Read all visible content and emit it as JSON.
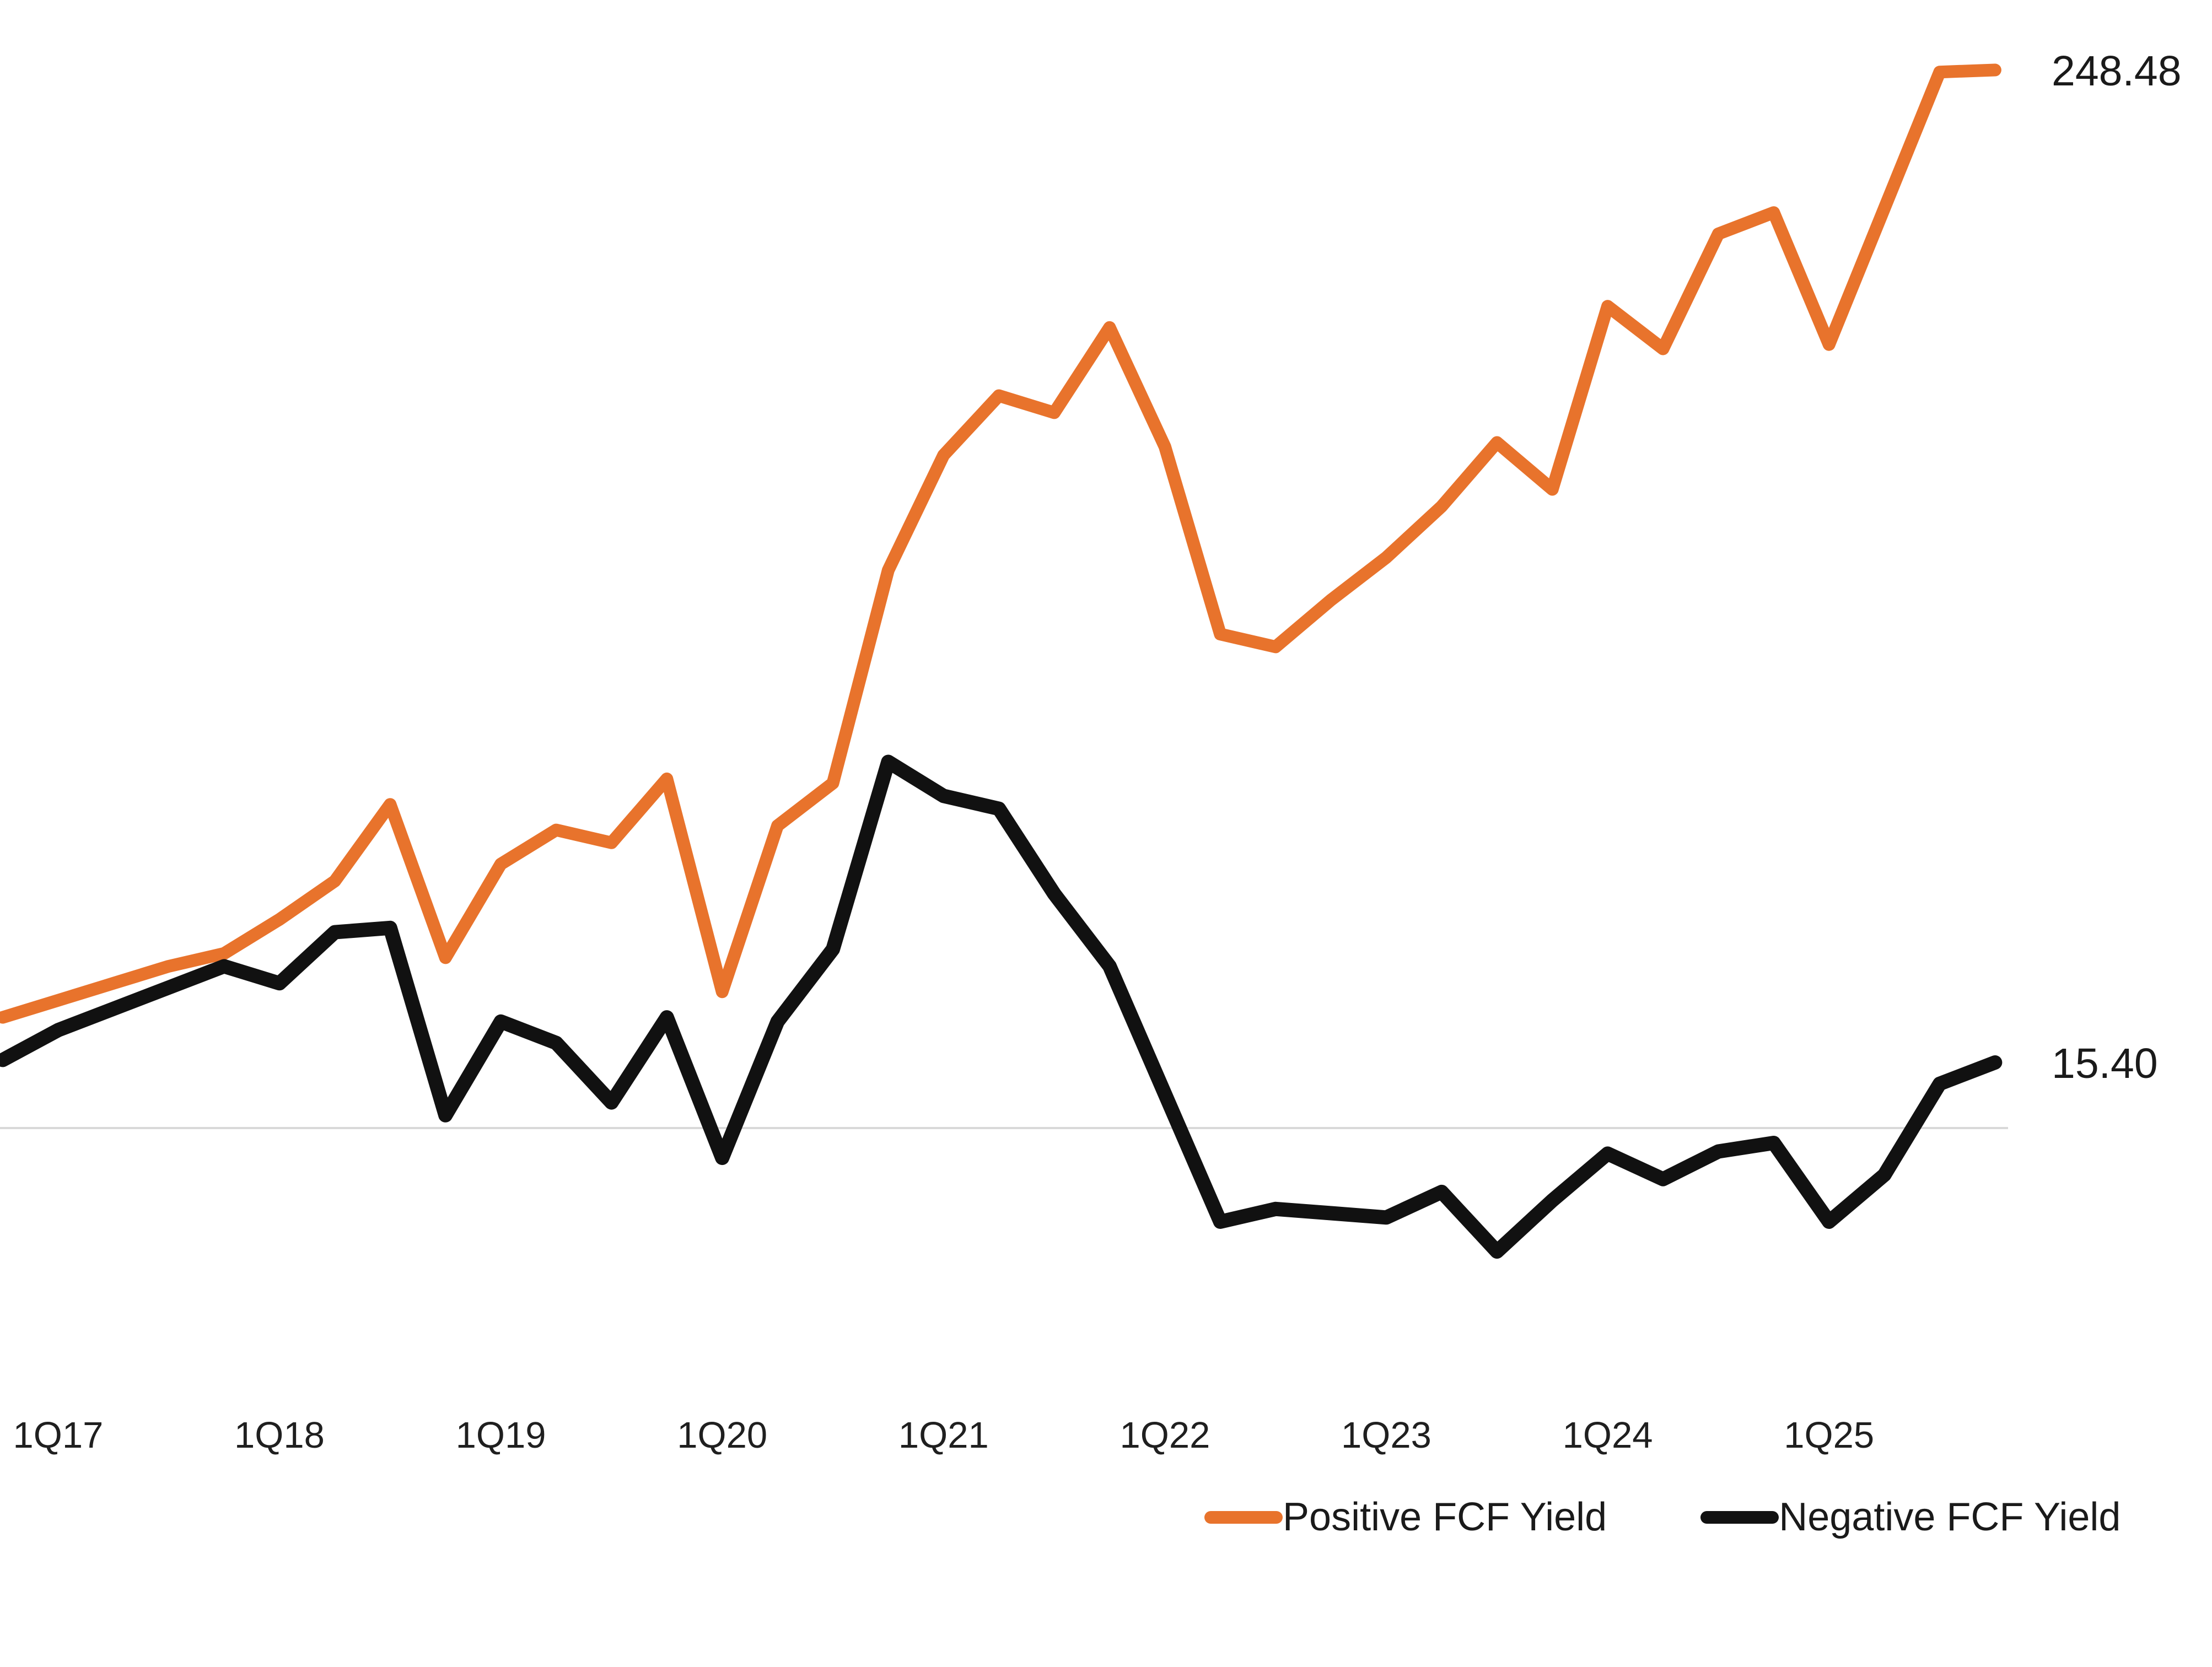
{
  "chart_data": {
    "type": "line",
    "title": "",
    "categories": [
      "4Q16",
      "1Q17",
      "2Q17",
      "3Q17",
      "4Q17",
      "1Q18",
      "2Q18",
      "3Q18",
      "4Q18",
      "1Q19",
      "2Q19",
      "3Q19",
      "4Q19",
      "1Q20",
      "2Q20",
      "3Q20",
      "4Q20",
      "1Q21",
      "2Q21",
      "3Q21",
      "4Q21",
      "1Q22",
      "2Q22",
      "3Q22",
      "4Q22",
      "1Q23",
      "2Q23",
      "3Q23",
      "4Q23",
      "1Q24",
      "2Q24",
      "3Q24",
      "4Q24",
      "1Q25",
      "2Q25",
      "3Q25",
      "4Q25"
    ],
    "x_tick_labels": [
      "1Q17",
      "1Q18",
      "1Q19",
      "1Q20",
      "1Q21",
      "1Q22",
      "1Q23",
      "1Q24",
      "1Q25"
    ],
    "series": [
      {
        "name": "Positive FCF Yield",
        "color": "#E8732C",
        "end_label": "248.48",
        "values": [
          26,
          30,
          34,
          38,
          41,
          49,
          58,
          76,
          40,
          62,
          70,
          67,
          82,
          32,
          71,
          81,
          131,
          158,
          172,
          168,
          188,
          160,
          116,
          113,
          124,
          134,
          146,
          161,
          150,
          193,
          183,
          210,
          215,
          184,
          216,
          248,
          248.48
        ]
      },
      {
        "name": "Negative FCF Yield",
        "color": "#111111",
        "end_label": "15.40",
        "values": [
          16,
          23,
          28,
          33,
          38,
          34,
          46,
          47,
          3,
          25,
          20,
          6,
          26,
          -7,
          25,
          42,
          86,
          78,
          75,
          55,
          38,
          8,
          -22,
          -19,
          -20,
          -21,
          -15,
          -29,
          -17,
          -6,
          -12,
          -5.5,
          -3.5,
          -22,
          -11,
          10.4,
          15.4
        ]
      }
    ],
    "baseline_value": 0,
    "grid": "single horizontal baseline at 0, color #D9D9D9",
    "legend_position": "bottom",
    "ylim": [
      -40,
      265
    ],
    "xlabel": "",
    "ylabel": ""
  }
}
